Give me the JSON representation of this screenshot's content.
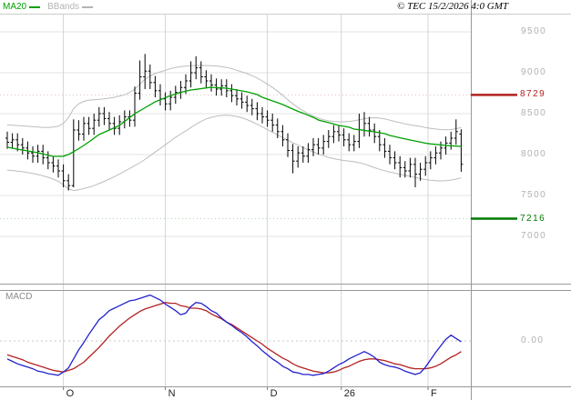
{
  "legend": {
    "ma20_label": "MA20",
    "bbands_label": "BBands"
  },
  "copyright_text": "© TEC 15/2/2026 4:0 GMT",
  "indicator_pane_label": "MACD",
  "axis": {
    "price_ticks": [
      9500,
      9000,
      8500,
      8000,
      7500,
      7000
    ],
    "macd_zero_label": "0.00",
    "time_ticks": [
      {
        "label": "O",
        "index": 11
      },
      {
        "label": "N",
        "index": 31
      },
      {
        "label": "D",
        "index": 51
      },
      {
        "label": "26",
        "index": 65.5
      },
      {
        "label": "F",
        "index": 82.5
      }
    ]
  },
  "levels": {
    "resistance": {
      "value": 8729,
      "color": "#b22222"
    },
    "support": {
      "value": 7216,
      "color": "#007a00"
    }
  },
  "colors": {
    "background": "#ffffff",
    "bars": "#000000",
    "ma20": "#00a000",
    "bbands": "#bdbdbd",
    "macd_line": "#2222cc",
    "signal_line": "#b22222",
    "grid_h": "#e3e3e3",
    "grid_v": "#d4d4d4",
    "border": "#999999",
    "axis_text": "#b0b0b0"
  },
  "chart_data": [
    {
      "type": "ohlc",
      "pane": "price",
      "title": "",
      "ylabel": "",
      "ylim": [
        6440,
        9890
      ],
      "grid": true,
      "levels": {
        "resistance": 8729,
        "support": 7216
      },
      "bars": [
        [
          8200,
          8280,
          8070,
          8150
        ],
        [
          8150,
          8260,
          8070,
          8180
        ],
        [
          8180,
          8260,
          8040,
          8120
        ],
        [
          8120,
          8200,
          8000,
          8080
        ],
        [
          8080,
          8160,
          7940,
          8020
        ],
        [
          8020,
          8100,
          7900,
          7980
        ],
        [
          7980,
          8120,
          7900,
          8040
        ],
        [
          8040,
          8120,
          7880,
          7960
        ],
        [
          7960,
          8040,
          7820,
          7900
        ],
        [
          7900,
          7980,
          7780,
          7860
        ],
        [
          7860,
          7940,
          7720,
          7800
        ],
        [
          7800,
          7880,
          7600,
          7680
        ],
        [
          7680,
          7760,
          7560,
          7620
        ],
        [
          7620,
          8430,
          7600,
          8300
        ],
        [
          8300,
          8420,
          8170,
          8250
        ],
        [
          8250,
          8460,
          8170,
          8380
        ],
        [
          8380,
          8460,
          8240,
          8320
        ],
        [
          8320,
          8500,
          8240,
          8420
        ],
        [
          8420,
          8580,
          8340,
          8500
        ],
        [
          8500,
          8580,
          8360,
          8440
        ],
        [
          8440,
          8520,
          8300,
          8380
        ],
        [
          8380,
          8460,
          8240,
          8320
        ],
        [
          8320,
          8480,
          8240,
          8400
        ],
        [
          8400,
          8540,
          8320,
          8460
        ],
        [
          8460,
          8540,
          8340,
          8420
        ],
        [
          8420,
          8830,
          8340,
          8750
        ],
        [
          8750,
          9150,
          8670,
          8950
        ],
        [
          8950,
          9230,
          8800,
          9020
        ],
        [
          9020,
          9100,
          8800,
          8880
        ],
        [
          8880,
          8960,
          8700,
          8780
        ],
        [
          8780,
          8860,
          8600,
          8680
        ],
        [
          8680,
          8760,
          8540,
          8620
        ],
        [
          8620,
          8780,
          8540,
          8700
        ],
        [
          8700,
          8840,
          8620,
          8760
        ],
        [
          8760,
          8900,
          8680,
          8820
        ],
        [
          8820,
          8980,
          8740,
          8900
        ],
        [
          8900,
          9140,
          8820,
          9000
        ],
        [
          9000,
          9200,
          8920,
          9060
        ],
        [
          9060,
          9140,
          8870,
          8950
        ],
        [
          8950,
          9030,
          8820,
          8900
        ],
        [
          8900,
          8980,
          8770,
          8850
        ],
        [
          8850,
          8930,
          8720,
          8800
        ],
        [
          8800,
          8920,
          8720,
          8840
        ],
        [
          8840,
          8920,
          8700,
          8780
        ],
        [
          8780,
          8860,
          8640,
          8720
        ],
        [
          8720,
          8800,
          8600,
          8680
        ],
        [
          8680,
          8760,
          8560,
          8640
        ],
        [
          8640,
          8720,
          8520,
          8600
        ],
        [
          8600,
          8680,
          8480,
          8560
        ],
        [
          8560,
          8640,
          8420,
          8500
        ],
        [
          8500,
          8580,
          8380,
          8460
        ],
        [
          8460,
          8540,
          8340,
          8420
        ],
        [
          8420,
          8500,
          8280,
          8360
        ],
        [
          8360,
          8440,
          8200,
          8280
        ],
        [
          8280,
          8360,
          8100,
          8180
        ],
        [
          8180,
          8260,
          7970,
          8050
        ],
        [
          8050,
          8130,
          7770,
          7920
        ],
        [
          7920,
          8100,
          7840,
          8020
        ],
        [
          8020,
          8100,
          7900,
          7980
        ],
        [
          7980,
          8140,
          7900,
          8060
        ],
        [
          8060,
          8200,
          7980,
          8120
        ],
        [
          8120,
          8200,
          8000,
          8080
        ],
        [
          8080,
          8240,
          8000,
          8160
        ],
        [
          8160,
          8300,
          8080,
          8220
        ],
        [
          8220,
          8360,
          8140,
          8280
        ],
        [
          8280,
          8360,
          8160,
          8240
        ],
        [
          8240,
          8320,
          8100,
          8180
        ],
        [
          8180,
          8260,
          8040,
          8120
        ],
        [
          8120,
          8240,
          8040,
          8160
        ],
        [
          8160,
          8500,
          8080,
          8300
        ],
        [
          8300,
          8520,
          8220,
          8380
        ],
        [
          8380,
          8460,
          8220,
          8300
        ],
        [
          8300,
          8380,
          8140,
          8220
        ],
        [
          8220,
          8300,
          8040,
          8120
        ],
        [
          8120,
          8200,
          7960,
          8040
        ],
        [
          8040,
          8120,
          7880,
          7960
        ],
        [
          7960,
          8040,
          7820,
          7900
        ],
        [
          7900,
          7980,
          7720,
          7840
        ],
        [
          7840,
          7920,
          7720,
          7800
        ],
        [
          7800,
          7960,
          7720,
          7880
        ],
        [
          7880,
          7960,
          7600,
          7760
        ],
        [
          7760,
          7900,
          7680,
          7820
        ],
        [
          7820,
          7980,
          7740,
          7900
        ],
        [
          7900,
          8040,
          7820,
          7960
        ],
        [
          7960,
          8100,
          7880,
          8020
        ],
        [
          8020,
          8160,
          7940,
          8080
        ],
        [
          8080,
          8220,
          8000,
          8140
        ],
        [
          8140,
          8280,
          8060,
          8200
        ],
        [
          8200,
          8430,
          8120,
          8280
        ],
        [
          8250,
          8310,
          7790,
          7880
        ]
      ],
      "overlays": {
        "ma20": [
          8090,
          8078,
          8066,
          8055,
          8044,
          8033,
          8022,
          8007,
          7992,
          7978,
          7978,
          7980,
          8000,
          8035,
          8072,
          8111,
          8155,
          8200,
          8244,
          8272,
          8300,
          8328,
          8356,
          8404,
          8452,
          8500,
          8536,
          8572,
          8608,
          8644,
          8670,
          8695,
          8720,
          8740,
          8760,
          8775,
          8789,
          8797,
          8805,
          8814,
          8822,
          8818,
          8814,
          8811,
          8800,
          8789,
          8778,
          8767,
          8750,
          8733,
          8700,
          8678,
          8656,
          8634,
          8611,
          8583,
          8555,
          8528,
          8505,
          8480,
          8455,
          8422,
          8406,
          8390,
          8373,
          8356,
          8345,
          8334,
          8311,
          8303,
          8295,
          8286,
          8278,
          8267,
          8256,
          8233,
          8219,
          8205,
          8191,
          8178,
          8165,
          8152,
          8139,
          8130,
          8124,
          8118,
          8111,
          8107,
          8103,
          8100
        ],
        "bb_upper": [
          8360,
          8360,
          8355,
          8350,
          8345,
          8340,
          8335,
          8330,
          8330,
          8335,
          8345,
          8380,
          8450,
          8560,
          8620,
          8650,
          8665,
          8670,
          8675,
          8680,
          8690,
          8700,
          8715,
          8730,
          8760,
          8800,
          8860,
          8920,
          8960,
          8990,
          9010,
          9030,
          9050,
          9065,
          9075,
          9082,
          9086,
          9089,
          9089,
          9088,
          9086,
          9082,
          9075,
          9065,
          9050,
          9030,
          9010,
          8990,
          8965,
          8935,
          8900,
          8860,
          8820,
          8775,
          8725,
          8670,
          8620,
          8575,
          8535,
          8500,
          8470,
          8445,
          8425,
          8412,
          8404,
          8400,
          8400,
          8404,
          8412,
          8424,
          8438,
          8448,
          8450,
          8445,
          8435,
          8420,
          8405,
          8390,
          8375,
          8362,
          8352,
          8344,
          8330,
          8320,
          8312,
          8306,
          8302,
          8305,
          8315,
          8330
        ],
        "bb_lower": [
          7810,
          7805,
          7798,
          7790,
          7780,
          7768,
          7755,
          7740,
          7722,
          7700,
          7672,
          7630,
          7580,
          7560,
          7570,
          7585,
          7600,
          7620,
          7645,
          7672,
          7700,
          7730,
          7762,
          7795,
          7830,
          7865,
          7900,
          7940,
          7985,
          8030,
          8075,
          8120,
          8165,
          8210,
          8250,
          8290,
          8330,
          8370,
          8405,
          8435,
          8455,
          8470,
          8478,
          8480,
          8476,
          8466,
          8450,
          8428,
          8400,
          8370,
          8338,
          8305,
          8272,
          8240,
          8208,
          8176,
          8145,
          8115,
          8085,
          8058,
          8032,
          8008,
          7986,
          7966,
          7950,
          7938,
          7928,
          7920,
          7912,
          7900,
          7885,
          7862,
          7840,
          7820,
          7802,
          7786,
          7772,
          7758,
          7746,
          7734,
          7720,
          7706,
          7694,
          7686,
          7680,
          7678,
          7680,
          7688,
          7700,
          7714
        ]
      }
    },
    {
      "type": "line",
      "pane": "macd",
      "title": "MACD",
      "ylim": [
        -0.56,
        0.63
      ],
      "zero_line": 0,
      "series": [
        {
          "name": "macd",
          "values": [
            -0.22,
            -0.25,
            -0.28,
            -0.3,
            -0.32,
            -0.34,
            -0.37,
            -0.38,
            -0.4,
            -0.41,
            -0.42,
            -0.38,
            -0.33,
            -0.22,
            -0.11,
            -0.02,
            0.08,
            0.17,
            0.26,
            0.31,
            0.37,
            0.4,
            0.43,
            0.46,
            0.49,
            0.5,
            0.52,
            0.54,
            0.56,
            0.53,
            0.5,
            0.45,
            0.41,
            0.37,
            0.32,
            0.34,
            0.42,
            0.47,
            0.46,
            0.42,
            0.37,
            0.34,
            0.28,
            0.23,
            0.19,
            0.14,
            0.1,
            0.05,
            -0.01,
            -0.06,
            -0.12,
            -0.17,
            -0.22,
            -0.26,
            -0.31,
            -0.34,
            -0.38,
            -0.39,
            -0.41,
            -0.41,
            -0.42,
            -0.41,
            -0.4,
            -0.37,
            -0.33,
            -0.29,
            -0.26,
            -0.22,
            -0.19,
            -0.16,
            -0.13,
            -0.16,
            -0.2,
            -0.26,
            -0.29,
            -0.31,
            -0.32,
            -0.34,
            -0.37,
            -0.39,
            -0.41,
            -0.39,
            -0.32,
            -0.23,
            -0.14,
            -0.06,
            0.02,
            0.07,
            0.03,
            -0.01
          ]
        },
        {
          "name": "signal",
          "values": [
            -0.17,
            -0.19,
            -0.21,
            -0.23,
            -0.26,
            -0.28,
            -0.3,
            -0.32,
            -0.34,
            -0.36,
            -0.37,
            -0.38,
            -0.36,
            -0.34,
            -0.3,
            -0.26,
            -0.2,
            -0.14,
            -0.08,
            -0.01,
            0.06,
            0.12,
            0.18,
            0.23,
            0.28,
            0.32,
            0.36,
            0.39,
            0.41,
            0.43,
            0.45,
            0.47,
            0.46,
            0.46,
            0.43,
            0.42,
            0.4,
            0.4,
            0.39,
            0.37,
            0.33,
            0.3,
            0.27,
            0.23,
            0.2,
            0.16,
            0.12,
            0.08,
            0.04,
            0.0,
            -0.04,
            -0.09,
            -0.13,
            -0.17,
            -0.21,
            -0.24,
            -0.28,
            -0.31,
            -0.33,
            -0.35,
            -0.37,
            -0.38,
            -0.39,
            -0.39,
            -0.38,
            -0.36,
            -0.33,
            -0.31,
            -0.28,
            -0.25,
            -0.23,
            -0.22,
            -0.22,
            -0.23,
            -0.24,
            -0.26,
            -0.28,
            -0.29,
            -0.31,
            -0.33,
            -0.34,
            -0.34,
            -0.34,
            -0.33,
            -0.31,
            -0.28,
            -0.24,
            -0.2,
            -0.17,
            -0.13
          ]
        }
      ]
    }
  ]
}
